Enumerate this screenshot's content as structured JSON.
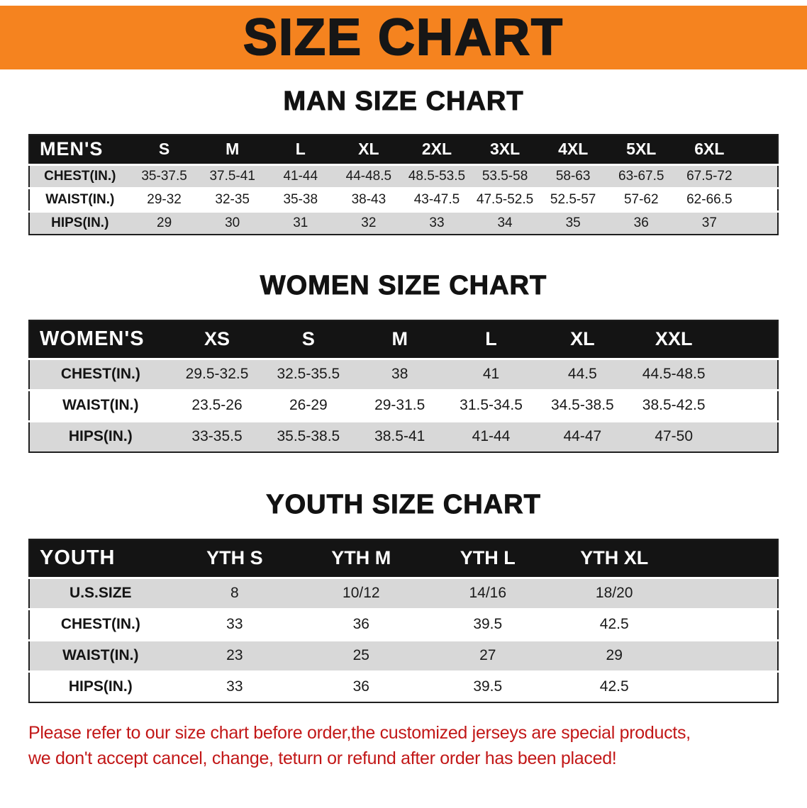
{
  "banner": {
    "title": "SIZE CHART"
  },
  "sections": [
    {
      "heading": "MAN SIZE CHART",
      "table_label": "MEN'S",
      "columns": [
        "S",
        "M",
        "L",
        "XL",
        "2XL",
        "3XL",
        "4XL",
        "5XL",
        "6XL"
      ],
      "rows": [
        {
          "label": "CHEST(IN.)",
          "values": [
            "35-37.5",
            "37.5-41",
            "41-44",
            "44-48.5",
            "48.5-53.5",
            "53.5-58",
            "58-63",
            "63-67.5",
            "67.5-72"
          ]
        },
        {
          "label": "WAIST(IN.)",
          "values": [
            "29-32",
            "32-35",
            "35-38",
            "38-43",
            "43-47.5",
            "47.5-52.5",
            "52.5-57",
            "57-62",
            "62-66.5"
          ]
        },
        {
          "label": "HIPS(IN.)",
          "values": [
            "29",
            "30",
            "31",
            "32",
            "33",
            "34",
            "35",
            "36",
            "37"
          ]
        }
      ]
    },
    {
      "heading": "WOMEN SIZE CHART",
      "table_label": "WOMEN'S",
      "columns": [
        "XS",
        "S",
        "M",
        "L",
        "XL",
        "XXL"
      ],
      "rows": [
        {
          "label": "CHEST(IN.)",
          "values": [
            "29.5-32.5",
            "32.5-35.5",
            "38",
            "41",
            "44.5",
            "44.5-48.5"
          ]
        },
        {
          "label": "WAIST(IN.)",
          "values": [
            "23.5-26",
            "26-29",
            "29-31.5",
            "31.5-34.5",
            "34.5-38.5",
            "38.5-42.5"
          ]
        },
        {
          "label": "HIPS(IN.)",
          "values": [
            "33-35.5",
            "35.5-38.5",
            "38.5-41",
            "41-44",
            "44-47",
            "47-50"
          ]
        }
      ]
    },
    {
      "heading": "YOUTH SIZE CHART",
      "table_label": "YOUTH",
      "columns": [
        "YTH S",
        "YTH M",
        "YTH L",
        "YTH XL"
      ],
      "rows": [
        {
          "label": "U.S.SIZE",
          "values": [
            "8",
            "10/12",
            "14/16",
            "18/20"
          ]
        },
        {
          "label": "CHEST(IN.)",
          "values": [
            "33",
            "36",
            "39.5",
            "42.5"
          ]
        },
        {
          "label": "WAIST(IN.)",
          "values": [
            "23",
            "25",
            "27",
            "29"
          ]
        },
        {
          "label": "HIPS(IN.)",
          "values": [
            "33",
            "36",
            "39.5",
            "42.5"
          ]
        }
      ]
    }
  ],
  "disclaimer": {
    "line1": "Please refer to our size chart before order,the customized jerseys are special products,",
    "line2": "we don't accept cancel, change, teturn or refund after order has been placed!"
  },
  "colors": {
    "banner_bg": "#f5831f",
    "table_header_bg": "#141414",
    "stripe_gray": "#d8d8d8",
    "disclaimer_red": "#c21717"
  }
}
